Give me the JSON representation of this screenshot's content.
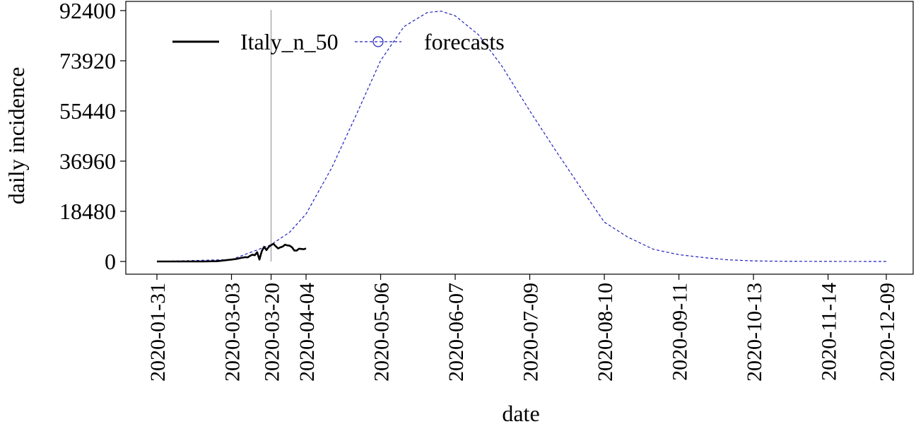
{
  "chart_data": {
    "type": "line",
    "title": "",
    "xlabel": "date",
    "ylabel": "daily incidence",
    "ylim": [
      0,
      92400
    ],
    "yticks": [
      0,
      18480,
      36960,
      55440,
      73920,
      92400
    ],
    "ytick_labels": [
      "0",
      "18480",
      "36960",
      "55440",
      "73920",
      "92400"
    ],
    "xlim": [
      "2020-01-31",
      "2020-12-09"
    ],
    "xticks": [
      "2020-01-31",
      "2020-03-03",
      "2020-03-20",
      "2020-04-04",
      "2020-05-06",
      "2020-06-07",
      "2020-07-09",
      "2020-08-10",
      "2020-09-11",
      "2020-10-13",
      "2020-11-14",
      "2020-12-09"
    ],
    "grid": false,
    "legend_position": "top-left",
    "reference_line": {
      "x": "2020-03-20",
      "color": "#b0b0b0"
    },
    "series": [
      {
        "name": "Italy_n_50",
        "style": "solid",
        "color": "#000000",
        "points": [
          [
            "2020-01-31",
            0
          ],
          [
            "2020-02-10",
            0
          ],
          [
            "2020-02-20",
            0
          ],
          [
            "2020-02-26",
            100
          ],
          [
            "2020-03-01",
            500
          ],
          [
            "2020-03-03",
            700
          ],
          [
            "2020-03-05",
            900
          ],
          [
            "2020-03-07",
            1300
          ],
          [
            "2020-03-09",
            1600
          ],
          [
            "2020-03-10",
            1500
          ],
          [
            "2020-03-11",
            2100
          ],
          [
            "2020-03-12",
            2500
          ],
          [
            "2020-03-13",
            2300
          ],
          [
            "2020-03-14",
            3400
          ],
          [
            "2020-03-15",
            700
          ],
          [
            "2020-03-16",
            3800
          ],
          [
            "2020-03-17",
            5400
          ],
          [
            "2020-03-18",
            4200
          ],
          [
            "2020-03-19",
            5400
          ],
          [
            "2020-03-20",
            6000
          ],
          [
            "2020-03-21",
            6500
          ],
          [
            "2020-03-22",
            5600
          ],
          [
            "2020-03-23",
            4800
          ],
          [
            "2020-03-24",
            5200
          ],
          [
            "2020-03-25",
            5500
          ],
          [
            "2020-03-26",
            6200
          ],
          [
            "2020-03-27",
            5900
          ],
          [
            "2020-03-28",
            5800
          ],
          [
            "2020-03-29",
            5200
          ],
          [
            "2020-03-30",
            4000
          ],
          [
            "2020-03-31",
            4000
          ],
          [
            "2020-04-01",
            4700
          ],
          [
            "2020-04-02",
            4600
          ],
          [
            "2020-04-03",
            4500
          ],
          [
            "2020-04-04",
            4800
          ]
        ]
      },
      {
        "name": "forecasts",
        "style": "dashed",
        "color": "#1f1fbf",
        "marker": "circle-in-legend",
        "points": [
          [
            "2020-01-31",
            0
          ],
          [
            "2020-03-03",
            700
          ],
          [
            "2020-03-20",
            6200
          ],
          [
            "2020-03-28",
            10800
          ],
          [
            "2020-04-04",
            17500
          ],
          [
            "2020-04-15",
            34500
          ],
          [
            "2020-04-25",
            53000
          ],
          [
            "2020-05-06",
            74000
          ],
          [
            "2020-05-16",
            86500
          ],
          [
            "2020-05-26",
            91700
          ],
          [
            "2020-06-01",
            92200
          ],
          [
            "2020-06-07",
            90500
          ],
          [
            "2020-06-17",
            83500
          ],
          [
            "2020-06-27",
            72000
          ],
          [
            "2020-07-09",
            55500
          ],
          [
            "2020-07-20",
            41000
          ],
          [
            "2020-07-31",
            27000
          ],
          [
            "2020-08-10",
            14500
          ],
          [
            "2020-08-20",
            9000
          ],
          [
            "2020-08-31",
            4500
          ],
          [
            "2020-09-11",
            2500
          ],
          [
            "2020-09-22",
            1400
          ],
          [
            "2020-10-02",
            600
          ],
          [
            "2020-10-13",
            200
          ],
          [
            "2020-10-25",
            80
          ],
          [
            "2020-11-14",
            20
          ],
          [
            "2020-12-09",
            0
          ]
        ]
      }
    ]
  }
}
